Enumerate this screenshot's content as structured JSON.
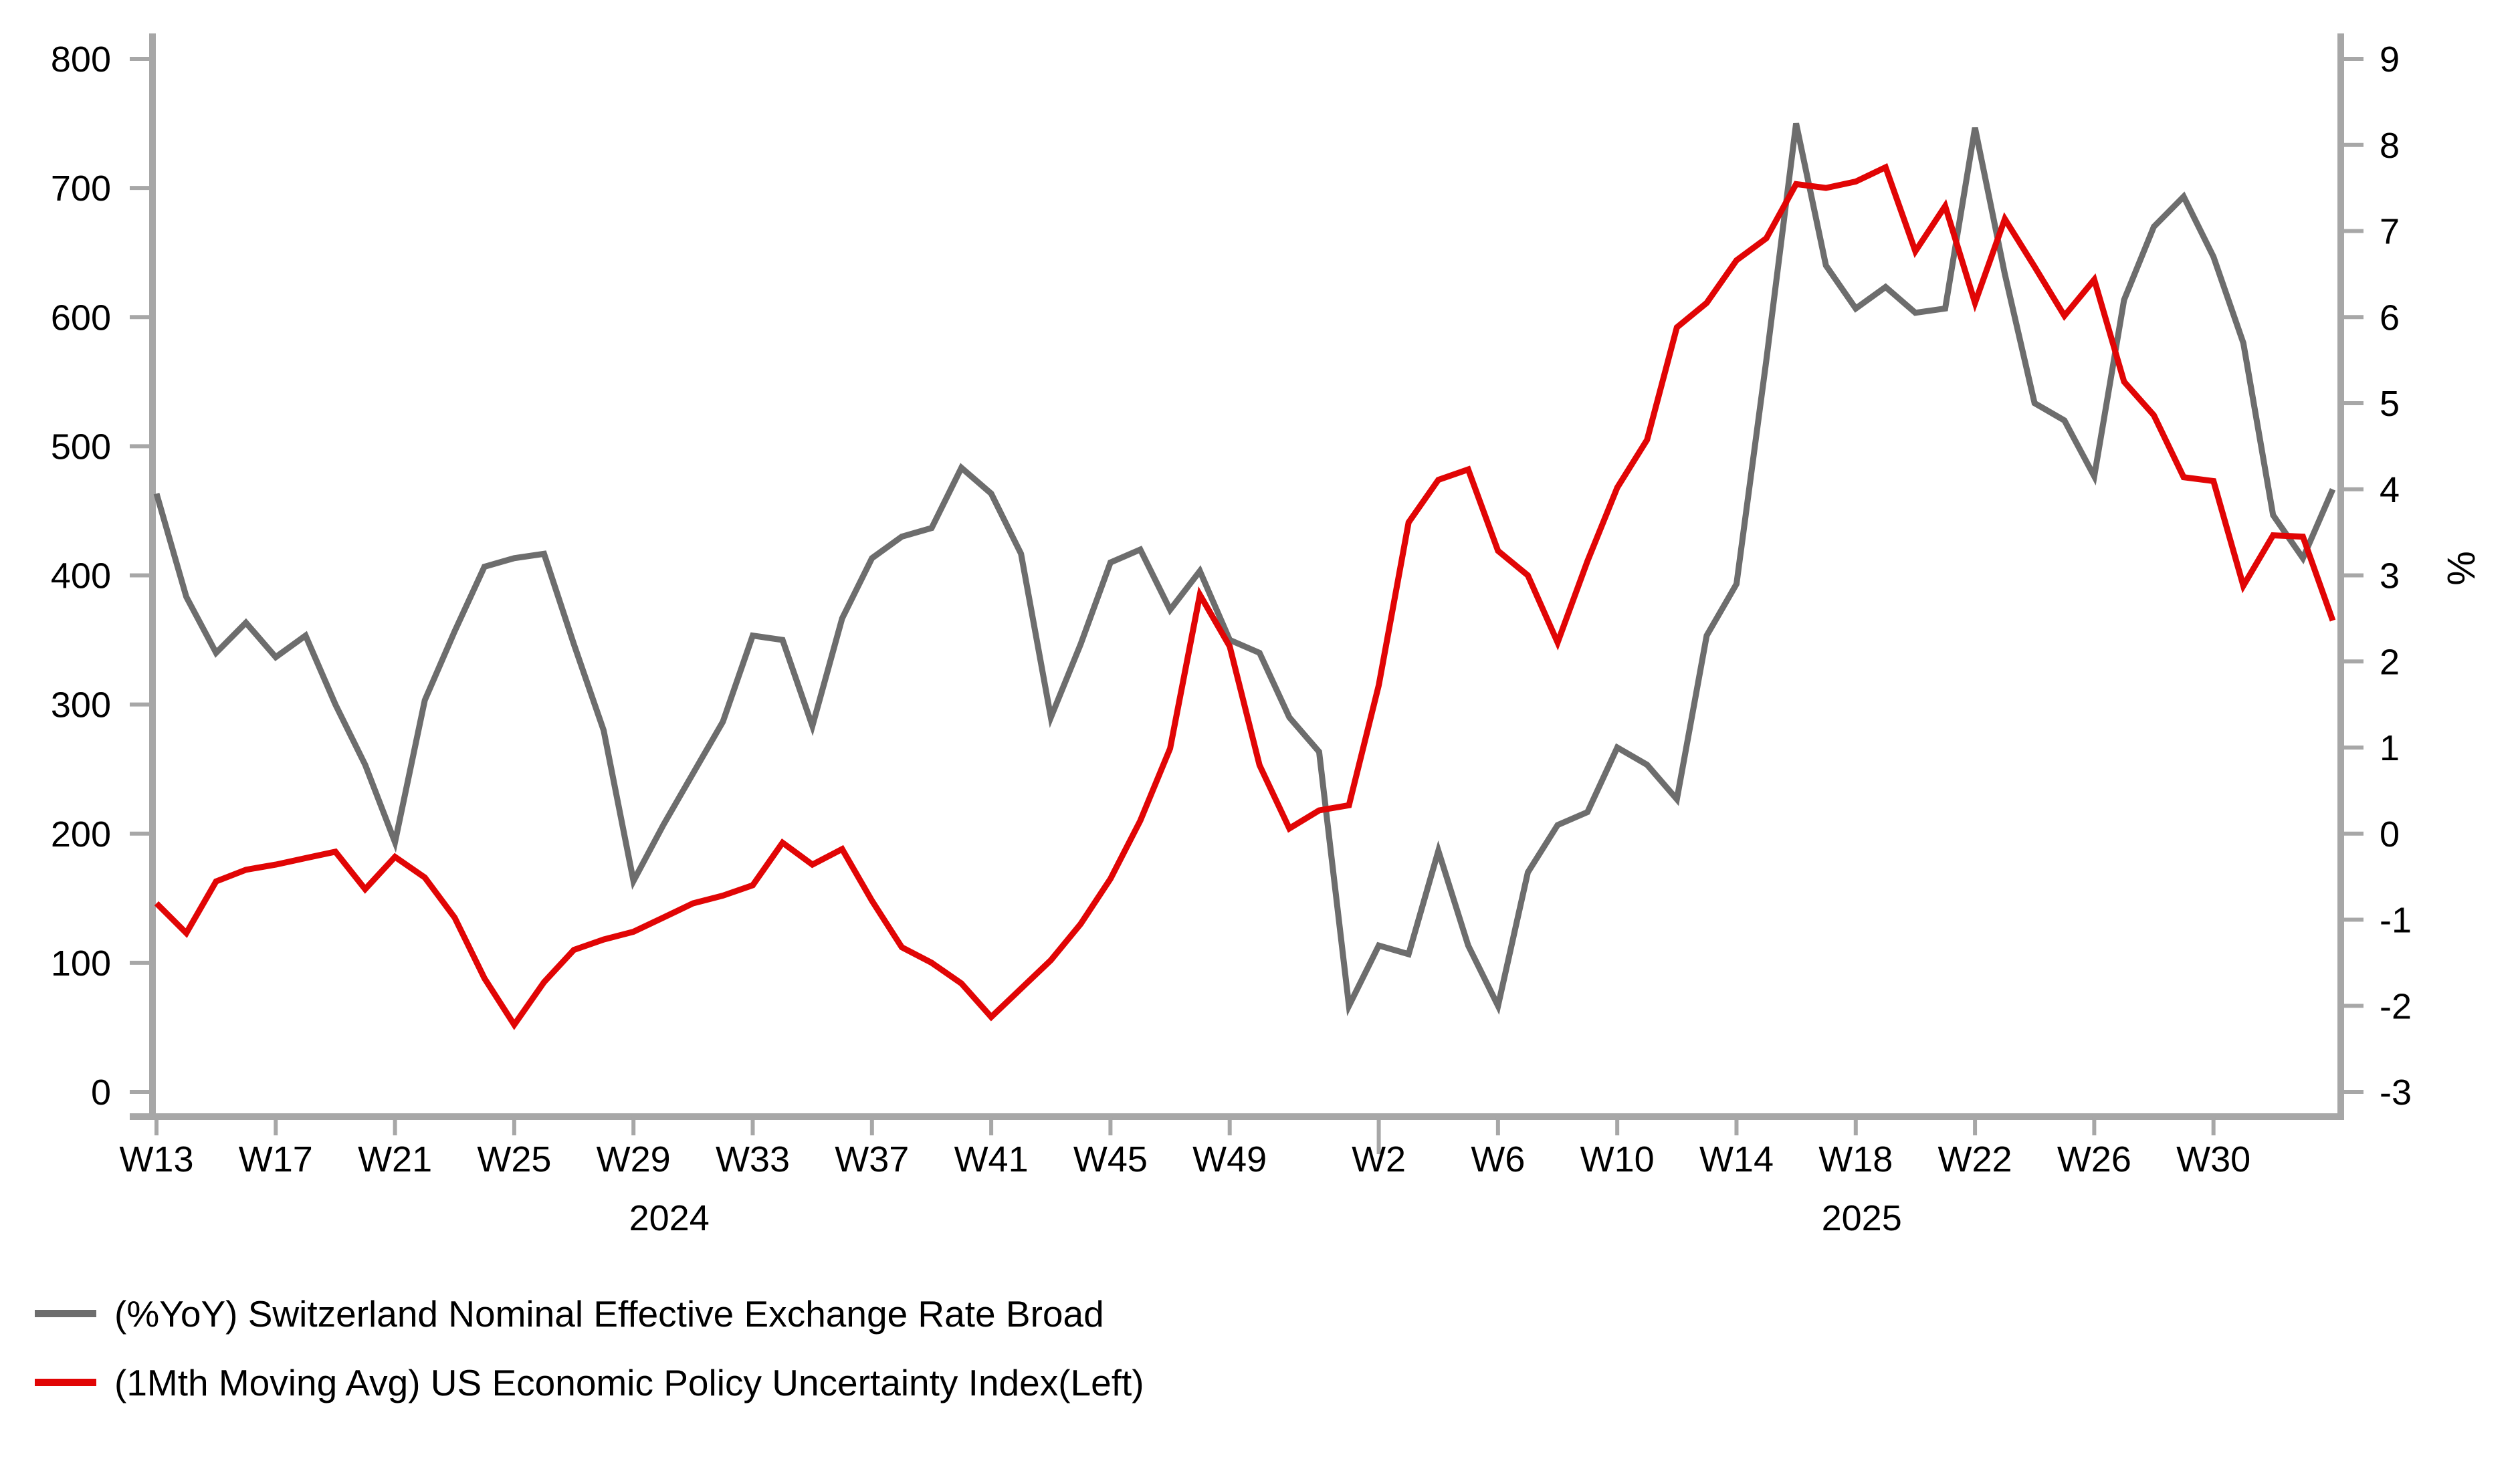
{
  "chart_data": {
    "type": "line",
    "title": "",
    "grid": "off",
    "legend_position": "bottom-left",
    "x_axis": {
      "unit": "ISO week",
      "start": "2024-W13",
      "end": "2025-W34",
      "points_per_week": 1,
      "n_points": 74,
      "tick_labels": [
        {
          "label": "W13",
          "week_index": 0,
          "long": false
        },
        {
          "label": "W17",
          "week_index": 4,
          "long": false
        },
        {
          "label": "W21",
          "week_index": 8,
          "long": false
        },
        {
          "label": "W25",
          "week_index": 12,
          "long": false
        },
        {
          "label": "W29",
          "week_index": 16,
          "long": false
        },
        {
          "label": "W33",
          "week_index": 20,
          "long": false
        },
        {
          "label": "W37",
          "week_index": 24,
          "long": false
        },
        {
          "label": "W41",
          "week_index": 28,
          "long": false
        },
        {
          "label": "W45",
          "week_index": 32,
          "long": false
        },
        {
          "label": "W49",
          "week_index": 36,
          "long": false
        },
        {
          "label": "W2",
          "week_index": 41,
          "long": true
        },
        {
          "label": "W6",
          "week_index": 45,
          "long": false
        },
        {
          "label": "W10",
          "week_index": 49,
          "long": false
        },
        {
          "label": "W14",
          "week_index": 53,
          "long": false
        },
        {
          "label": "W18",
          "week_index": 57,
          "long": false
        },
        {
          "label": "W22",
          "week_index": 61,
          "long": false
        },
        {
          "label": "W26",
          "week_index": 65,
          "long": false
        },
        {
          "label": "W30",
          "week_index": 69,
          "long": false
        }
      ],
      "year_labels": [
        {
          "label": "2024",
          "week_index": 17.2
        },
        {
          "label": "2025",
          "week_index": 57.2
        }
      ]
    },
    "left_axis": {
      "min": 0,
      "max": 800,
      "step": 100,
      "tick_labels": [
        "0",
        "100",
        "200",
        "300",
        "400",
        "500",
        "600",
        "700",
        "800"
      ]
    },
    "right_axis": {
      "min": -3,
      "max": 9,
      "step": 1,
      "tick_labels": [
        "-3",
        "-2",
        "-1",
        "0",
        "1",
        "2",
        "3",
        "4",
        "5",
        "6",
        "7",
        "8",
        "9"
      ],
      "title": "%"
    },
    "series": [
      {
        "name": "Switzerland Nominal Effective Exchange Rate Broad",
        "legend_label": "(%YoY) Switzerland Nominal Effective Exchange Rate Broad",
        "axis": "right",
        "color": "#6d6d6d",
        "stroke_width": 9,
        "values": [
          3.95,
          2.75,
          2.1,
          2.45,
          2.05,
          2.3,
          1.5,
          0.8,
          -0.1,
          1.55,
          2.35,
          3.1,
          3.2,
          3.25,
          2.2,
          1.2,
          -0.55,
          0.1,
          0.7,
          1.3,
          2.3,
          2.25,
          1.25,
          2.5,
          3.2,
          3.45,
          3.55,
          4.25,
          3.95,
          3.25,
          1.35,
          2.2,
          3.15,
          3.3,
          2.6,
          3.05,
          2.25,
          2.1,
          1.35,
          0.95,
          -2.0,
          -1.3,
          -1.4,
          -0.2,
          -1.3,
          -2.0,
          -0.45,
          0.1,
          0.25,
          1.0,
          0.8,
          0.4,
          2.3,
          2.9,
          5.5,
          8.25,
          6.6,
          6.1,
          6.35,
          6.05,
          6.1,
          8.2,
          6.5,
          5.0,
          4.8,
          4.15,
          6.2,
          7.05,
          7.4,
          6.7,
          5.7,
          3.7,
          3.2,
          4.0
        ]
      },
      {
        "name": "US Economic Policy Uncertainty Index",
        "legend_label": "(1Mth Moving Avg) US Economic Policy Uncertainty Index(Left)",
        "axis": "left",
        "color": "#e10505",
        "stroke_width": 9,
        "values": [
          146,
          123,
          163,
          172,
          176,
          181,
          186,
          157,
          182,
          166,
          135,
          88,
          52,
          85,
          110,
          118,
          124,
          135,
          146,
          152,
          160,
          193,
          176,
          188,
          148,
          112,
          100,
          84,
          58,
          80,
          102,
          130,
          165,
          210,
          266,
          385,
          345,
          253,
          204,
          218,
          222,
          315,
          441,
          474,
          482,
          419,
          400,
          348,
          411,
          468,
          505,
          592,
          611,
          644,
          661,
          703,
          700,
          705,
          716,
          651,
          686,
          611,
          676,
          639,
          601,
          629,
          550,
          524,
          476,
          473,
          392,
          431,
          430,
          365
        ]
      }
    ]
  }
}
